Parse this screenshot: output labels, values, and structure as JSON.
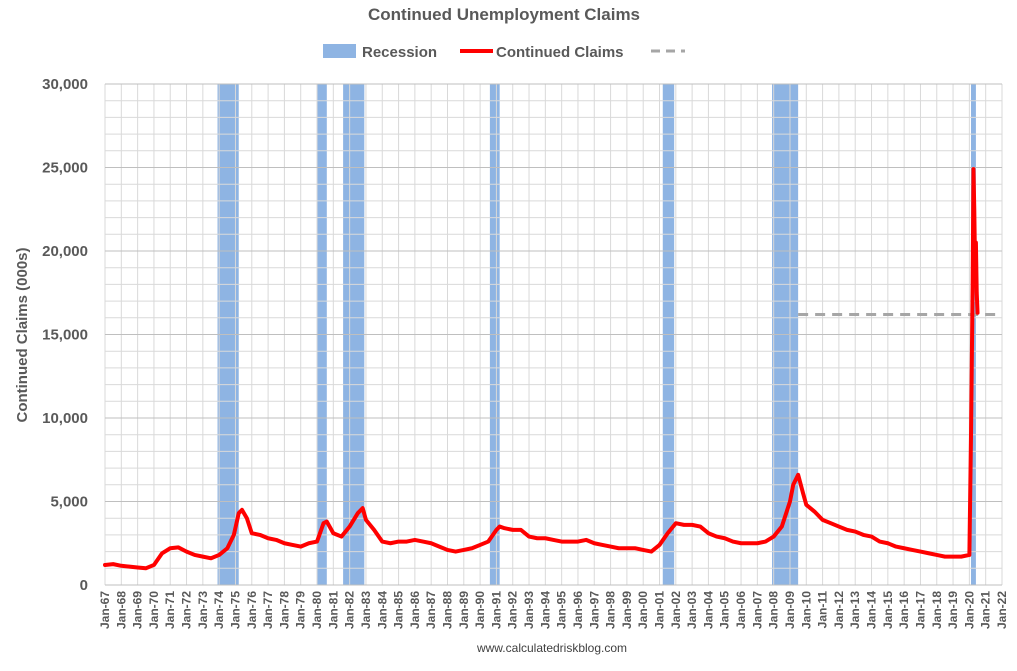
{
  "chart_data": {
    "type": "line",
    "title": "Continued Unemployment Claims",
    "ylabel": "Continued Claims (000s)",
    "xlabel": "",
    "source": "www.calculatedriskblog.com",
    "ylim": [
      0,
      30000
    ],
    "xlim": [
      1967.0,
      2022.0
    ],
    "yticks": [
      {
        "value": 0,
        "label": "0"
      },
      {
        "value": 5000,
        "label": "5,000"
      },
      {
        "value": 10000,
        "label": "10,000"
      },
      {
        "value": 15000,
        "label": "15,000"
      },
      {
        "value": 20000,
        "label": "20,000"
      },
      {
        "value": 25000,
        "label": "25,000"
      },
      {
        "value": 30000,
        "label": "30,000"
      }
    ],
    "xtick_labels": [
      "Jan-67",
      "Jan-68",
      "Jan-69",
      "Jan-70",
      "Jan-71",
      "Jan-72",
      "Jan-73",
      "Jan-74",
      "Jan-75",
      "Jan-76",
      "Jan-77",
      "Jan-78",
      "Jan-79",
      "Jan-80",
      "Jan-81",
      "Jan-82",
      "Jan-83",
      "Jan-84",
      "Jan-85",
      "Jan-86",
      "Jan-87",
      "Jan-88",
      "Jan-89",
      "Jan-90",
      "Jan-91",
      "Jan-92",
      "Jan-93",
      "Jan-94",
      "Jan-95",
      "Jan-96",
      "Jan-97",
      "Jan-98",
      "Jan-99",
      "Jan-00",
      "Jan-01",
      "Jan-02",
      "Jan-03",
      "Jan-04",
      "Jan-05",
      "Jan-06",
      "Jan-07",
      "Jan-08",
      "Jan-09",
      "Jan-10",
      "Jan-11",
      "Jan-12",
      "Jan-13",
      "Jan-14",
      "Jan-15",
      "Jan-16",
      "Jan-17",
      "Jan-18",
      "Jan-19",
      "Jan-20",
      "Jan-21",
      "Jan-22"
    ],
    "grid": true,
    "legend_position": "top-center",
    "legend": [
      {
        "name": "Recession",
        "kind": "area",
        "color": "#8EB4E3"
      },
      {
        "name": "Continued Claims",
        "kind": "line",
        "color": "#FF0000"
      },
      {
        "name": "",
        "kind": "dashed-line",
        "color": "#A6A6A6"
      }
    ],
    "recessions": [
      {
        "start": 1973.9,
        "end": 1975.2
      },
      {
        "start": 1980.0,
        "end": 1980.6
      },
      {
        "start": 1981.6,
        "end": 1982.9
      },
      {
        "start": 1990.6,
        "end": 1991.2
      },
      {
        "start": 2001.2,
        "end": 2001.9
      },
      {
        "start": 2007.9,
        "end": 2009.5
      },
      {
        "start": 2020.1,
        "end": 2020.4
      }
    ],
    "reference_line": {
      "y": 16200,
      "x_start": 2009.5,
      "x_end": 2022.0,
      "color": "#A6A6A6",
      "style": "dashed"
    },
    "series": [
      {
        "name": "Continued Claims",
        "color": "#FF0000",
        "x": [
          1967.0,
          1967.5,
          1968.0,
          1968.5,
          1969.0,
          1969.5,
          1970.0,
          1970.5,
          1971.0,
          1971.5,
          1972.0,
          1972.5,
          1973.0,
          1973.5,
          1974.0,
          1974.5,
          1974.9,
          1975.2,
          1975.4,
          1975.7,
          1976.0,
          1976.5,
          1977.0,
          1977.5,
          1978.0,
          1978.5,
          1979.0,
          1979.5,
          1980.0,
          1980.4,
          1980.6,
          1981.0,
          1981.5,
          1982.0,
          1982.5,
          1982.8,
          1983.0,
          1983.5,
          1984.0,
          1984.5,
          1985.0,
          1985.5,
          1986.0,
          1986.5,
          1987.0,
          1987.5,
          1988.0,
          1988.5,
          1989.0,
          1989.5,
          1990.0,
          1990.5,
          1991.0,
          1991.2,
          1991.5,
          1992.0,
          1992.5,
          1993.0,
          1993.5,
          1994.0,
          1994.5,
          1995.0,
          1995.5,
          1996.0,
          1996.5,
          1997.0,
          1997.5,
          1998.0,
          1998.5,
          1999.0,
          1999.5,
          2000.0,
          2000.5,
          2001.0,
          2001.5,
          2002.0,
          2002.5,
          2003.0,
          2003.5,
          2004.0,
          2004.5,
          2005.0,
          2005.5,
          2006.0,
          2006.5,
          2007.0,
          2007.5,
          2008.0,
          2008.5,
          2009.0,
          2009.2,
          2009.5,
          2009.8,
          2010.0,
          2010.5,
          2011.0,
          2011.5,
          2012.0,
          2012.5,
          2013.0,
          2013.5,
          2014.0,
          2014.5,
          2015.0,
          2015.5,
          2016.0,
          2016.5,
          2017.0,
          2017.5,
          2018.0,
          2018.5,
          2019.0,
          2019.5,
          2020.0,
          2020.1,
          2020.2,
          2020.25,
          2020.3,
          2020.35,
          2020.4,
          2020.45,
          2020.5
        ],
        "values": [
          1200,
          1250,
          1150,
          1100,
          1050,
          1000,
          1200,
          1900,
          2200,
          2250,
          2000,
          1800,
          1700,
          1600,
          1800,
          2200,
          3000,
          4300,
          4500,
          4000,
          3100,
          3000,
          2800,
          2700,
          2500,
          2400,
          2300,
          2500,
          2600,
          3700,
          3800,
          3100,
          2900,
          3500,
          4300,
          4600,
          3900,
          3300,
          2600,
          2500,
          2600,
          2600,
          2700,
          2600,
          2500,
          2300,
          2100,
          2000,
          2100,
          2200,
          2400,
          2600,
          3300,
          3500,
          3400,
          3300,
          3300,
          2900,
          2800,
          2800,
          2700,
          2600,
          2600,
          2600,
          2700,
          2500,
          2400,
          2300,
          2200,
          2200,
          2200,
          2100,
          2000,
          2400,
          3100,
          3700,
          3600,
          3600,
          3500,
          3100,
          2900,
          2800,
          2600,
          2500,
          2500,
          2500,
          2600,
          2900,
          3500,
          5000,
          6000,
          6600,
          5500,
          4800,
          4400,
          3900,
          3700,
          3500,
          3300,
          3200,
          3000,
          2900,
          2600,
          2500,
          2300,
          2200,
          2100,
          2000,
          1900,
          1800,
          1700,
          1700,
          1700,
          1800,
          9000,
          18000,
          24900,
          22500,
          19000,
          20500,
          17500,
          16300
        ]
      }
    ]
  }
}
